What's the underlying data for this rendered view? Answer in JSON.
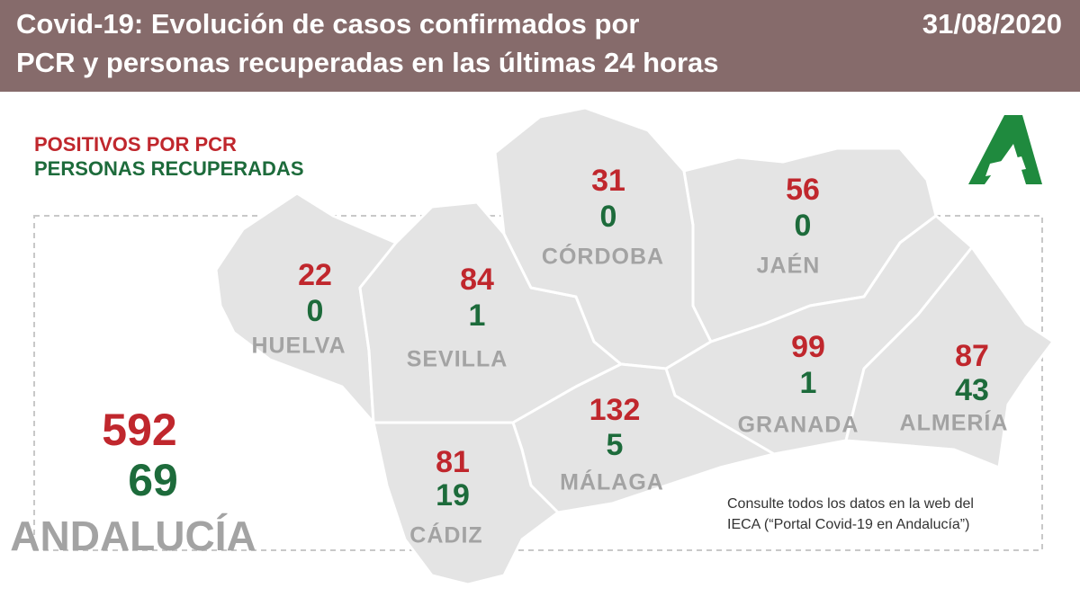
{
  "header": {
    "title_lines": [
      "Covid-19: Evolución de casos confirmados por",
      "PCR y personas recuperadas en las últimas 24 horas"
    ],
    "date": "31/08/2020"
  },
  "legend": {
    "positive": "POSITIVOS POR PCR",
    "recovered": "PERSONAS RECUPERADAS"
  },
  "provinces": [
    {
      "name": "HUELVA",
      "positive": 22,
      "recovered": 0
    },
    {
      "name": "SEVILLA",
      "positive": 84,
      "recovered": 1
    },
    {
      "name": "CÓRDOBA",
      "positive": 31,
      "recovered": 0
    },
    {
      "name": "JAÉN",
      "positive": 56,
      "recovered": 0
    },
    {
      "name": "GRANADA",
      "positive": 99,
      "recovered": 1
    },
    {
      "name": "ALMERÍA",
      "positive": 87,
      "recovered": 43
    },
    {
      "name": "MÁLAGA",
      "positive": 132,
      "recovered": 5
    },
    {
      "name": "CÁDIZ",
      "positive": 81,
      "recovered": 19
    }
  ],
  "total": {
    "name": "ANDALUCÍA",
    "positive": 592,
    "recovered": 69
  },
  "note_lines": [
    "Consulte todos los datos en la web del",
    "IECA (“Portal Covid-19 en Andalucía”)"
  ]
}
